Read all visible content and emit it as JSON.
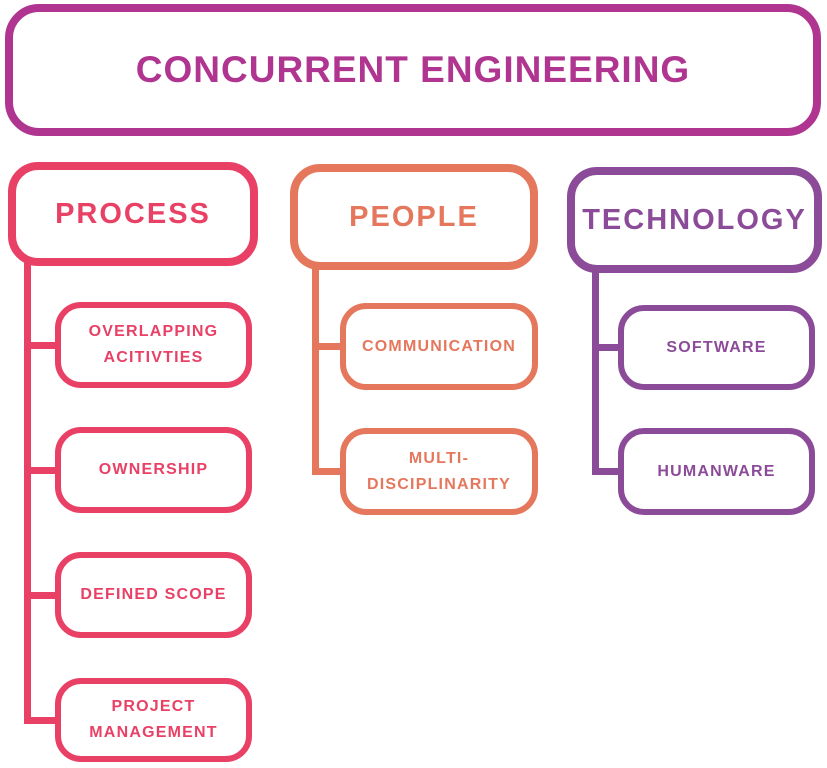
{
  "title": {
    "label": "CONCURRENT ENGINEERING"
  },
  "colors": {
    "title": "#AF3590",
    "process": "#E94066",
    "people": "#E5775C",
    "technology": "#8C4B99",
    "background": "#FFFFFF"
  },
  "columns": [
    {
      "label": "PROCESS",
      "children": [
        {
          "label": "OVERLAPPING ACITIVTIES"
        },
        {
          "label": "OWNERSHIP"
        },
        {
          "label": "DEFINED SCOPE"
        },
        {
          "label": "PROJECT MANAGEMENT"
        }
      ]
    },
    {
      "label": "PEOPLE",
      "children": [
        {
          "label": "COMMUNICATION"
        },
        {
          "label": "MULTI- DISCIPLINARITY"
        }
      ]
    },
    {
      "label": "TECHNOLOGY",
      "children": [
        {
          "label": "SOFTWARE"
        },
        {
          "label": "HUMANWARE"
        }
      ]
    }
  ]
}
